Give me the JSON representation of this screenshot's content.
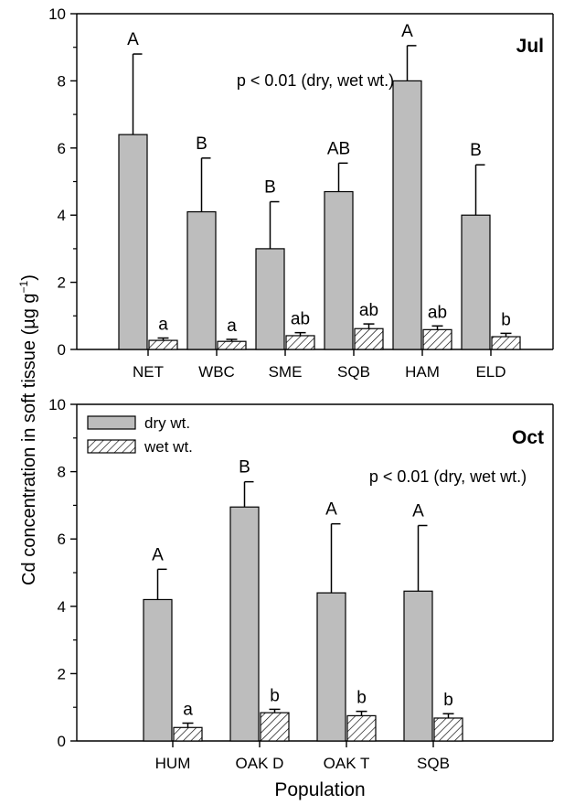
{
  "figure": {
    "ylabel_prefix": "Cd concentration in soft tissue (µg g",
    "ylabel_sup": "−1",
    "ylabel_suffix": ")",
    "xlabel": "Population",
    "legend": {
      "dry": "dry wt.",
      "wet": "wet wt."
    }
  },
  "colors": {
    "dry_fill": "#bdbdbd",
    "wet_fill": "#ffffff",
    "stroke": "#000000"
  },
  "chart_data": [
    {
      "type": "bar",
      "panel_label": "Jul",
      "annotation": "p < 0.01 (dry, wet wt.)",
      "categories": [
        "NET",
        "WBC",
        "SME",
        "SQB",
        "HAM",
        "ELD"
      ],
      "ylim": [
        0,
        10
      ],
      "yticks": [
        "0",
        "2",
        "4",
        "6",
        "8",
        "10"
      ],
      "series": [
        {
          "name": "dry wt.",
          "pattern": "solid-gray",
          "values": [
            6.4,
            4.1,
            3.0,
            4.7,
            8.0,
            4.0
          ],
          "errors": [
            2.4,
            1.6,
            1.4,
            0.85,
            1.05,
            1.5
          ],
          "letters": [
            "A",
            "B",
            "B",
            "AB",
            "A",
            "B"
          ]
        },
        {
          "name": "wet wt.",
          "pattern": "hatched",
          "values": [
            0.27,
            0.24,
            0.41,
            0.62,
            0.59,
            0.38
          ],
          "errors": [
            0.07,
            0.06,
            0.09,
            0.14,
            0.11,
            0.1
          ],
          "letters": [
            "a",
            "a",
            "ab",
            "ab",
            "ab",
            "b"
          ]
        }
      ]
    },
    {
      "type": "bar",
      "panel_label": "Oct",
      "annotation": "p < 0.01 (dry, wet wt.)",
      "categories": [
        "HUM",
        "OAK D",
        "OAK T",
        "SQB"
      ],
      "ylim": [
        0,
        10
      ],
      "yticks": [
        "0",
        "2",
        "4",
        "6",
        "8",
        "10"
      ],
      "legend_position": "top-left",
      "series": [
        {
          "name": "dry wt.",
          "pattern": "solid-gray",
          "values": [
            4.2,
            6.95,
            4.4,
            4.45
          ],
          "errors": [
            0.9,
            0.75,
            2.05,
            1.95
          ],
          "letters": [
            "A",
            "B",
            "A",
            "A"
          ]
        },
        {
          "name": "wet wt.",
          "pattern": "hatched",
          "values": [
            0.4,
            0.84,
            0.75,
            0.68
          ],
          "errors": [
            0.13,
            0.1,
            0.13,
            0.13
          ],
          "letters": [
            "a",
            "b",
            "b",
            "b"
          ]
        }
      ]
    }
  ]
}
